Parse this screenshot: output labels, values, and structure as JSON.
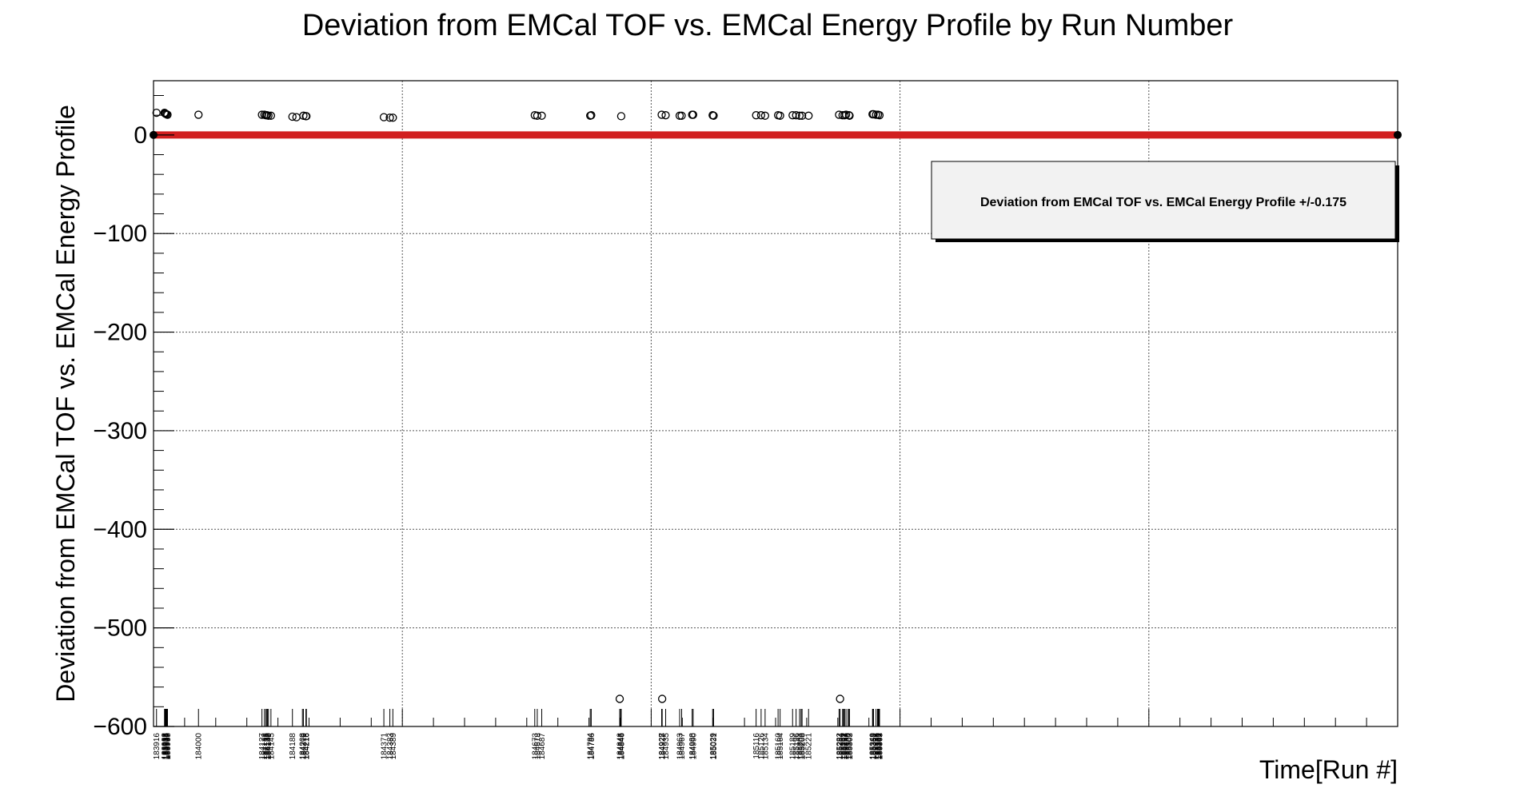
{
  "chart_data": {
    "type": "scatter",
    "title": "Deviation from EMCal TOF vs. EMCal Energy Profile by Run Number",
    "xlabel": "Time[Run #]",
    "ylabel": "Deviation from EMCal TOF vs. EMCal Energy Profile",
    "xlim": [
      183910,
      186400
    ],
    "ylim": [
      -600,
      55
    ],
    "yticks": [
      0,
      -100,
      -200,
      -300,
      -400,
      -500,
      -600
    ],
    "ytick_labels": [
      "0",
      "−100",
      "−200",
      "−300",
      "−400",
      "−500",
      "−600"
    ],
    "grid": true,
    "legend": {
      "placement": "top-right",
      "label": "Deviation from EMCal TOF vs. EMCal Energy Profile +/-0.175"
    },
    "colors": {
      "band": "#d11f1f",
      "markers": "#000000",
      "legend_fill": "#f2f2f2"
    },
    "xtick_labels": [
      {
        "x": 183916,
        "label": "183916"
      },
      {
        "x": 183932,
        "label": "183932"
      },
      {
        "x": 183933,
        "label": "183933"
      },
      {
        "x": 183934,
        "label": "183934"
      },
      {
        "x": 183935,
        "label": "183935"
      },
      {
        "x": 183936,
        "label": "183936"
      },
      {
        "x": 183937,
        "label": "183937"
      },
      {
        "x": 183938,
        "label": "183938"
      },
      {
        "x": 184000,
        "label": "184000"
      },
      {
        "x": 184127,
        "label": "184127"
      },
      {
        "x": 184132,
        "label": "184132"
      },
      {
        "x": 184135,
        "label": "184135"
      },
      {
        "x": 184137,
        "label": "184137"
      },
      {
        "x": 184138,
        "label": "184138"
      },
      {
        "x": 184140,
        "label": "184140"
      },
      {
        "x": 184145,
        "label": "184145"
      },
      {
        "x": 184188,
        "label": "184188"
      },
      {
        "x": 184208,
        "label": "184208"
      },
      {
        "x": 184210,
        "label": "184210"
      },
      {
        "x": 184215,
        "label": "184215"
      },
      {
        "x": 184216,
        "label": "184216"
      },
      {
        "x": 184371,
        "label": "184371"
      },
      {
        "x": 184383,
        "label": "184383"
      },
      {
        "x": 184389,
        "label": "184389"
      },
      {
        "x": 184673,
        "label": "184673"
      },
      {
        "x": 184678,
        "label": "184678"
      },
      {
        "x": 184687,
        "label": "184687"
      },
      {
        "x": 184784,
        "label": "184784"
      },
      {
        "x": 184786,
        "label": "184786"
      },
      {
        "x": 184843,
        "label": "184843"
      },
      {
        "x": 184845,
        "label": "184845"
      },
      {
        "x": 184846,
        "label": "184846"
      },
      {
        "x": 184927,
        "label": "184927"
      },
      {
        "x": 184928,
        "label": "184928"
      },
      {
        "x": 184935,
        "label": "184935"
      },
      {
        "x": 184963,
        "label": "184963"
      },
      {
        "x": 184967,
        "label": "184967"
      },
      {
        "x": 184988,
        "label": "184988"
      },
      {
        "x": 184990,
        "label": "184990"
      },
      {
        "x": 185029,
        "label": "185029"
      },
      {
        "x": 185031,
        "label": "185031"
      },
      {
        "x": 185116,
        "label": "185116"
      },
      {
        "x": 185126,
        "label": "185126"
      },
      {
        "x": 185134,
        "label": "185134"
      },
      {
        "x": 185160,
        "label": "185160"
      },
      {
        "x": 185164,
        "label": "185164"
      },
      {
        "x": 185189,
        "label": "185189"
      },
      {
        "x": 185196,
        "label": "185196"
      },
      {
        "x": 185203,
        "label": "185203"
      },
      {
        "x": 185206,
        "label": "185206"
      },
      {
        "x": 185208,
        "label": "185208"
      },
      {
        "x": 185221,
        "label": "185221"
      },
      {
        "x": 185282,
        "label": "185282"
      },
      {
        "x": 185284,
        "label": "185284"
      },
      {
        "x": 185289,
        "label": "185289"
      },
      {
        "x": 185291,
        "label": "185291"
      },
      {
        "x": 185292,
        "label": "185292"
      },
      {
        "x": 185293,
        "label": "185293"
      },
      {
        "x": 185296,
        "label": "185296"
      },
      {
        "x": 185300,
        "label": "185300"
      },
      {
        "x": 185302,
        "label": "185302"
      },
      {
        "x": 185303,
        "label": "185303"
      },
      {
        "x": 185349,
        "label": "185349"
      },
      {
        "x": 185350,
        "label": "185350"
      },
      {
        "x": 185351,
        "label": "185351"
      },
      {
        "x": 185356,
        "label": "185356"
      },
      {
        "x": 185359,
        "label": "185359"
      },
      {
        "x": 185360,
        "label": "185360"
      },
      {
        "x": 185361,
        "label": "185361"
      },
      {
        "x": 185362,
        "label": "185362"
      },
      {
        "x": 185363,
        "label": "185363"
      }
    ],
    "series": [
      {
        "marker": "open-circle",
        "points": [
          {
            "x": 183916,
            "y": 22.5
          },
          {
            "x": 183932,
            "y": 22.5
          },
          {
            "x": 183933,
            "y": 22.0
          },
          {
            "x": 183934,
            "y": 21.5
          },
          {
            "x": 183936,
            "y": 21.0
          },
          {
            "x": 183938,
            "y": 20.5
          },
          {
            "x": 184000,
            "y": 20.5
          },
          {
            "x": 184127,
            "y": 20.5
          },
          {
            "x": 184132,
            "y": 20.5
          },
          {
            "x": 184135,
            "y": 20.0
          },
          {
            "x": 184137,
            "y": 20.0
          },
          {
            "x": 184140,
            "y": 19.5
          },
          {
            "x": 184145,
            "y": 19.5
          },
          {
            "x": 184188,
            "y": 18.5
          },
          {
            "x": 184196,
            "y": 18.0
          },
          {
            "x": 184210,
            "y": 19.5
          },
          {
            "x": 184215,
            "y": 19.0
          },
          {
            "x": 184216,
            "y": 19.0
          },
          {
            "x": 184371,
            "y": 18.0
          },
          {
            "x": 184383,
            "y": 17.5
          },
          {
            "x": 184389,
            "y": 17.5
          },
          {
            "x": 184673,
            "y": 20.0
          },
          {
            "x": 184678,
            "y": 19.5
          },
          {
            "x": 184687,
            "y": 19.5
          },
          {
            "x": 184786,
            "y": 20.0
          },
          {
            "x": 184784,
            "y": 19.5
          },
          {
            "x": 184846,
            "y": 19.0
          },
          {
            "x": 184843,
            "y": -572.0
          },
          {
            "x": 184927,
            "y": 20.5
          },
          {
            "x": 184935,
            "y": 20.0
          },
          {
            "x": 184928,
            "y": -572.0
          },
          {
            "x": 184963,
            "y": 19.5
          },
          {
            "x": 184967,
            "y": 19.5
          },
          {
            "x": 184988,
            "y": 20.5
          },
          {
            "x": 184990,
            "y": 20.5
          },
          {
            "x": 185029,
            "y": 20.0
          },
          {
            "x": 185031,
            "y": 19.5
          },
          {
            "x": 185116,
            "y": 20.0
          },
          {
            "x": 185126,
            "y": 20.0
          },
          {
            "x": 185134,
            "y": 19.5
          },
          {
            "x": 185160,
            "y": 20.0
          },
          {
            "x": 185164,
            "y": 19.5
          },
          {
            "x": 185189,
            "y": 20.0
          },
          {
            "x": 185196,
            "y": 20.0
          },
          {
            "x": 185203,
            "y": 19.5
          },
          {
            "x": 185208,
            "y": 19.5
          },
          {
            "x": 185221,
            "y": 19.5
          },
          {
            "x": 185282,
            "y": 20.5
          },
          {
            "x": 185289,
            "y": 20.0
          },
          {
            "x": 185293,
            "y": 20.0
          },
          {
            "x": 185296,
            "y": 20.5
          },
          {
            "x": 185302,
            "y": 20.0
          },
          {
            "x": 185303,
            "y": 19.5
          },
          {
            "x": 185284,
            "y": -572.0
          },
          {
            "x": 185349,
            "y": 21.0
          },
          {
            "x": 185351,
            "y": 21.0
          },
          {
            "x": 185356,
            "y": 20.5
          },
          {
            "x": 185360,
            "y": 20.5
          },
          {
            "x": 185363,
            "y": 20.0
          }
        ]
      },
      {
        "marker": "filled-band",
        "y": 0.0,
        "tolerance": 0.175
      }
    ]
  }
}
